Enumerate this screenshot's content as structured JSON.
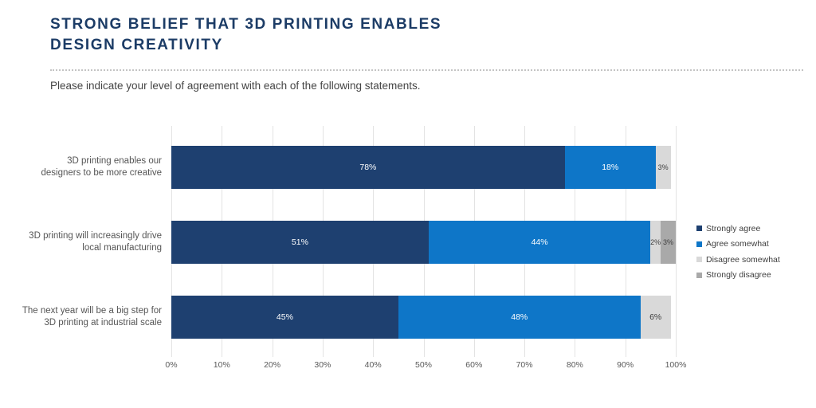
{
  "page": {
    "title_line1": "STRONG BELIEF THAT 3D PRINTING ENABLES",
    "title_line2": "DESIGN CREATIVITY",
    "subtitle": "Please indicate your level of agreement with each of the following statements."
  },
  "colors": {
    "title": "#1c3c66",
    "gridline": "#e3e3e3",
    "strongly_agree": "#1e4070",
    "agree_somewhat": "#0e76c8",
    "disagree_somewhat": "#d9d9d9",
    "strongly_disagree": "#a9a9a9"
  },
  "chart_data": {
    "type": "bar",
    "orientation": "horizontal-stacked",
    "title": "STRONG BELIEF THAT 3D PRINTING ENABLES DESIGN CREATIVITY",
    "subtitle": "Please indicate your level of agreement with each of the following statements.",
    "categories": [
      "3D printing enables our designers to be more creative",
      "3D printing will increasingly drive local manufacturing",
      "The next year will be a big step for 3D printing at industrial scale"
    ],
    "category_lines": [
      [
        "3D printing enables our",
        "designers to be more creative"
      ],
      [
        "3D printing will increasingly drive",
        "local manufacturing"
      ],
      [
        "The next year will be a big step for",
        "3D printing at industrial scale"
      ]
    ],
    "series": [
      {
        "name": "Strongly agree",
        "color": "#1e4070",
        "label_color": "#ffffff",
        "values": [
          78,
          51,
          45
        ]
      },
      {
        "name": "Agree somewhat",
        "color": "#0e76c8",
        "label_color": "#ffffff",
        "values": [
          18,
          44,
          48
        ]
      },
      {
        "name": "Disagree somewhat",
        "color": "#d9d9d9",
        "label_color": "#3f3f3f",
        "values": [
          3,
          2,
          6
        ]
      },
      {
        "name": "Strongly disagree",
        "color": "#a9a9a9",
        "label_color": "#3f3f3f",
        "values": [
          0,
          3,
          0
        ]
      }
    ],
    "x_ticks": [
      "0%",
      "10%",
      "20%",
      "30%",
      "40%",
      "50%",
      "60%",
      "70%",
      "80%",
      "90%",
      "100%"
    ],
    "xlim": [
      0,
      100
    ],
    "grid": "vertical",
    "legend_position": "right"
  }
}
